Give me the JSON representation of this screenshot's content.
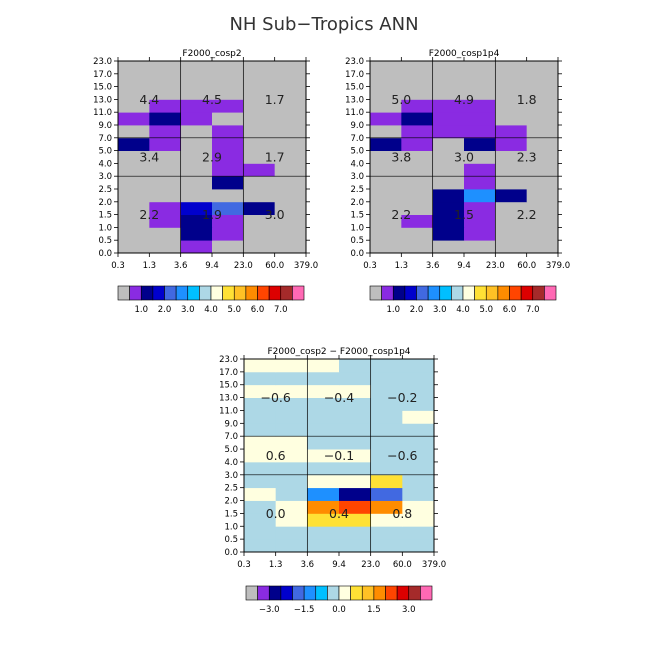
{
  "title": "NH Sub−Tropics ANN",
  "x_ticks": [
    "0.3",
    "1.3",
    "3.6",
    "9.4",
    "23.0",
    "60.0",
    "379.0"
  ],
  "y_ticks": [
    "0.0",
    "0.5",
    "1.0",
    "1.5",
    "2.0",
    "2.5",
    "3.0",
    "4.0",
    "5.0",
    "7.0",
    "9.0",
    "11.0",
    "13.0",
    "15.0",
    "17.0",
    "23.0"
  ],
  "palette": {
    "colors": [
      "#bebebe",
      "#8a2be2",
      "#00008b",
      "#0000cd",
      "#4169e1",
      "#1e90ff",
      "#00bfff",
      "#add8e6",
      "#ffffe0",
      "#ffe135",
      "#ffc125",
      "#ff8c00",
      "#ff4500",
      "#dd0000",
      "#a52a2a",
      "#ff69b4"
    ],
    "abs_labels": [
      "1.0",
      "2.0",
      "3.0",
      "4.0",
      "5.0",
      "6.0",
      "7.0"
    ],
    "abs_label_boundaries": [
      2,
      4,
      6,
      8,
      10,
      12,
      14
    ],
    "diff_colors": [
      "#bebebe",
      "#8a2be2",
      "#00008b",
      "#0000cd",
      "#4169e1",
      "#1e90ff",
      "#00bfff",
      "#add8e6",
      "#ffffe0",
      "#ffe135",
      "#ffc125",
      "#ff8c00",
      "#ff4500",
      "#dd0000",
      "#a52a2a",
      "#ff69b4"
    ],
    "diff_labels": [
      "−3.0",
      "−1.5",
      "0.0",
      "1.5",
      "3.0"
    ],
    "diff_label_boundaries": [
      2,
      5,
      8,
      11,
      14
    ]
  },
  "chart_data": [
    {
      "type": "heatmap",
      "title": "F2000_cosp2",
      "x_edges": [
        "0.3",
        "1.3",
        "3.6",
        "9.4",
        "23.0",
        "60.0",
        "379.0"
      ],
      "y_edges": [
        "0.0",
        "0.5",
        "1.0",
        "1.5",
        "2.0",
        "2.5",
        "3.0",
        "4.0",
        "5.0",
        "7.0",
        "9.0",
        "11.0",
        "13.0",
        "15.0",
        "17.0",
        "23.0"
      ],
      "color_rows": [
        [
          0,
          0,
          1,
          0,
          0,
          0
        ],
        [
          0,
          0,
          2,
          1,
          0,
          0
        ],
        [
          0,
          1,
          2,
          1,
          0,
          0
        ],
        [
          0,
          1,
          3,
          4,
          2,
          0
        ],
        [
          0,
          0,
          0,
          0,
          0,
          0
        ],
        [
          0,
          0,
          0,
          2,
          0,
          0
        ],
        [
          0,
          0,
          0,
          1,
          1,
          0
        ],
        [
          0,
          0,
          0,
          1,
          0,
          0
        ],
        [
          2,
          1,
          0,
          1,
          0,
          0
        ],
        [
          0,
          1,
          0,
          1,
          0,
          0
        ],
        [
          1,
          2,
          1,
          0,
          0,
          0
        ],
        [
          0,
          1,
          1,
          1,
          0,
          0
        ],
        [
          0,
          0,
          0,
          0,
          0,
          0
        ],
        [
          0,
          0,
          0,
          0,
          0,
          0
        ],
        [
          0,
          0,
          0,
          0,
          0,
          0
        ]
      ],
      "group_values": [
        [
          "2.2",
          "1.9",
          "3.0"
        ],
        [
          "3.4",
          "2.9",
          "1.7"
        ],
        [
          "4.4",
          "4.5",
          "1.7"
        ]
      ]
    },
    {
      "type": "heatmap",
      "title": "F2000_cosp1p4",
      "x_edges": [
        "0.3",
        "1.3",
        "3.6",
        "9.4",
        "23.0",
        "60.0",
        "379.0"
      ],
      "y_edges": [
        "0.0",
        "0.5",
        "1.0",
        "1.5",
        "2.0",
        "2.5",
        "3.0",
        "4.0",
        "5.0",
        "7.0",
        "9.0",
        "11.0",
        "13.0",
        "15.0",
        "17.0",
        "23.0"
      ],
      "color_rows": [
        [
          0,
          0,
          0,
          0,
          0,
          0
        ],
        [
          0,
          0,
          2,
          1,
          0,
          0
        ],
        [
          0,
          1,
          2,
          1,
          0,
          0
        ],
        [
          0,
          0,
          2,
          1,
          0,
          0
        ],
        [
          0,
          0,
          2,
          5,
          2,
          0
        ],
        [
          0,
          0,
          0,
          1,
          0,
          0
        ],
        [
          0,
          0,
          0,
          1,
          0,
          0
        ],
        [
          0,
          0,
          0,
          0,
          0,
          0
        ],
        [
          2,
          1,
          0,
          2,
          1,
          0
        ],
        [
          0,
          1,
          1,
          1,
          1,
          0
        ],
        [
          1,
          2,
          1,
          1,
          0,
          0
        ],
        [
          0,
          1,
          1,
          1,
          0,
          0
        ],
        [
          0,
          0,
          0,
          0,
          0,
          0
        ],
        [
          0,
          0,
          0,
          0,
          0,
          0
        ],
        [
          0,
          0,
          0,
          0,
          0,
          0
        ]
      ],
      "group_values": [
        [
          "2.2",
          "1.5",
          "2.2"
        ],
        [
          "3.8",
          "3.0",
          "2.3"
        ],
        [
          "5.0",
          "4.9",
          "1.8"
        ]
      ]
    },
    {
      "type": "heatmap",
      "title": "F2000_cosp2 − F2000_cosp1p4",
      "x_edges": [
        "0.3",
        "1.3",
        "3.6",
        "9.4",
        "23.0",
        "60.0",
        "379.0"
      ],
      "y_edges": [
        "0.0",
        "0.5",
        "1.0",
        "1.5",
        "2.0",
        "2.5",
        "3.0",
        "4.0",
        "5.0",
        "7.0",
        "9.0",
        "11.0",
        "13.0",
        "15.0",
        "17.0",
        "23.0"
      ],
      "color_rows": [
        [
          7,
          7,
          7,
          7,
          7,
          7
        ],
        [
          7,
          7,
          7,
          7,
          7,
          7
        ],
        [
          7,
          8,
          9,
          9,
          8,
          8
        ],
        [
          7,
          8,
          11,
          12,
          11,
          8
        ],
        [
          8,
          7,
          5,
          2,
          4,
          7
        ],
        [
          7,
          7,
          8,
          8,
          9,
          7
        ],
        [
          7,
          7,
          7,
          7,
          7,
          7
        ],
        [
          8,
          8,
          8,
          8,
          7,
          7
        ],
        [
          8,
          8,
          7,
          7,
          7,
          7
        ],
        [
          7,
          7,
          7,
          7,
          7,
          7
        ],
        [
          7,
          7,
          7,
          7,
          7,
          8
        ],
        [
          7,
          7,
          7,
          7,
          7,
          7
        ],
        [
          8,
          8,
          8,
          8,
          7,
          7
        ],
        [
          7,
          7,
          7,
          7,
          7,
          7
        ],
        [
          8,
          8,
          8,
          7,
          7,
          7
        ]
      ],
      "group_values": [
        [
          "0.0",
          "0.4",
          "0.8"
        ],
        [
          "0.6",
          "−0.1",
          "−0.6"
        ],
        [
          "−0.6",
          "−0.4",
          "−0.2"
        ]
      ]
    }
  ]
}
